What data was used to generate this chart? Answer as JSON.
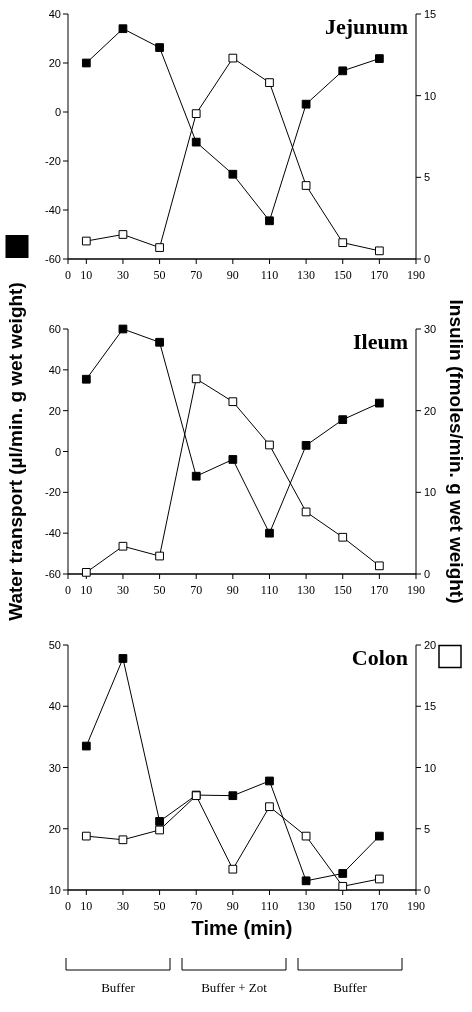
{
  "chart_data": [
    {
      "type": "line",
      "title": "Jejunum",
      "marker": "square",
      "x": [
        10,
        30,
        50,
        70,
        90,
        110,
        130,
        150,
        170
      ],
      "xlim": [
        0,
        190
      ],
      "xticks": [
        0,
        10,
        30,
        50,
        70,
        90,
        110,
        130,
        150,
        170,
        190
      ],
      "ylim": [
        -60,
        40
      ],
      "yticks": [
        -60,
        -40,
        -20,
        0,
        20,
        40
      ],
      "y2lim": [
        0,
        15
      ],
      "y2ticks": [
        0,
        5,
        10,
        15
      ],
      "series": [
        {
          "color": "#000000",
          "values": [
            20,
            34,
            26.3,
            -12.3,
            -25.4,
            -44.4,
            3.2,
            16.8,
            21.8
          ]
        },
        {
          "color": "#ffffff",
          "axis": "y2",
          "values": [
            1.1,
            1.5,
            0.7,
            8.9,
            12.3,
            10.8,
            4.5,
            1.0,
            0.5
          ]
        }
      ]
    },
    {
      "type": "line",
      "title": "Ileum",
      "marker": "square",
      "ylabel": "Water transport (µl/min. g wet weight)",
      "y2label": "Insulin (fmoles/min. g wet weight)",
      "x": [
        10,
        30,
        50,
        70,
        90,
        110,
        130,
        150,
        170
      ],
      "xlim": [
        0,
        190
      ],
      "xticks": [
        0,
        10,
        30,
        50,
        70,
        90,
        110,
        130,
        150,
        170,
        190
      ],
      "ylim": [
        -60,
        60
      ],
      "yticks": [
        -60,
        -40,
        -20,
        0,
        20,
        40,
        60
      ],
      "y2lim": [
        0,
        30
      ],
      "y2ticks": [
        0,
        10,
        20,
        30
      ],
      "series": [
        {
          "color": "#000000",
          "values": [
            35.4,
            60,
            53.5,
            -12.1,
            -3.9,
            -40,
            3,
            15.6,
            23.7
          ]
        },
        {
          "color": "#ffffff",
          "axis": "y2",
          "values": [
            0.2,
            3.4,
            2.2,
            23.9,
            21.1,
            15.8,
            7.6,
            4.5,
            1.0
          ]
        }
      ]
    },
    {
      "type": "line",
      "title": "Colon",
      "marker": "square",
      "xlabel": "Time (min)",
      "annotations": [
        "Buffer",
        "Buffer + Zot",
        "Buffer"
      ],
      "x": [
        10,
        30,
        50,
        70,
        90,
        110,
        130,
        150,
        170
      ],
      "xlim": [
        0,
        190
      ],
      "xticks": [
        0,
        10,
        30,
        50,
        70,
        90,
        110,
        130,
        150,
        170,
        190
      ],
      "ylim": [
        10,
        50
      ],
      "yticks": [
        10,
        20,
        30,
        40,
        50
      ],
      "y2lim": [
        0,
        20
      ],
      "y2ticks": [
        0,
        5,
        10,
        15,
        20
      ],
      "series": [
        {
          "color": "#000000",
          "values": [
            33.5,
            47.8,
            21.2,
            25.5,
            25.4,
            27.8,
            11.5,
            12.7,
            18.8
          ]
        },
        {
          "color": "#ffffff",
          "axis": "y2",
          "values": [
            4.4,
            4.1,
            4.9,
            7.7,
            1.7,
            6.8,
            4.4,
            0.3,
            0.9
          ]
        }
      ]
    }
  ]
}
